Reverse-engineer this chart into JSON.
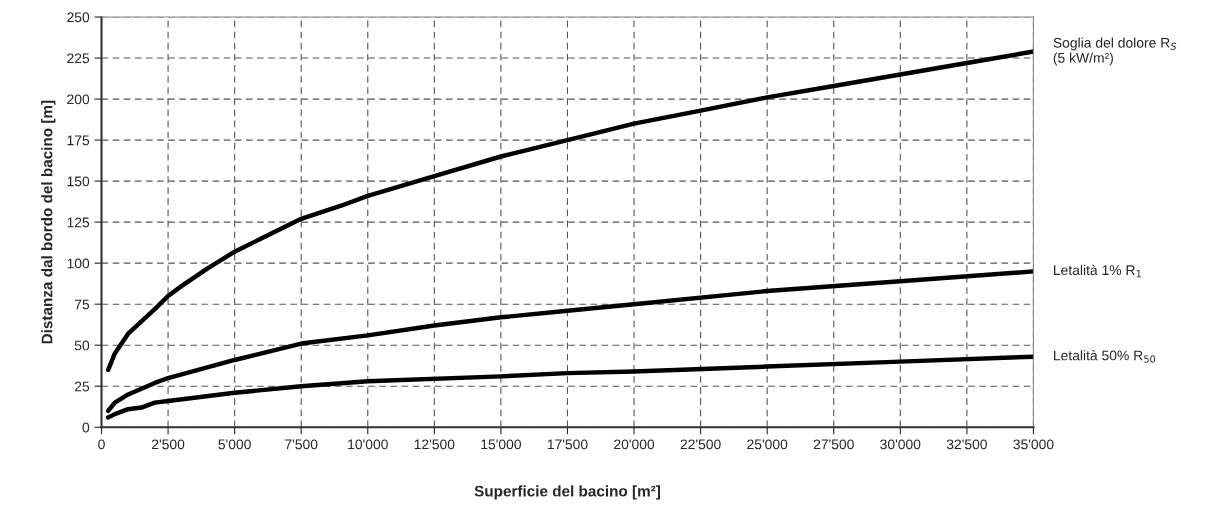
{
  "chart_data": {
    "type": "line",
    "xlabel": "Superficie del bacino [m²]",
    "ylabel": "Distanza dal bordo del bacino [m]",
    "xlim": [
      0,
      35000
    ],
    "ylim": [
      0,
      250
    ],
    "xticks": [
      0,
      {
        "value": 2500,
        "label": "2'500"
      },
      {
        "value": 5000,
        "label": "5'000"
      },
      {
        "value": 7500,
        "label": "7'500"
      },
      {
        "value": 10000,
        "label": "10'000"
      },
      {
        "value": 12500,
        "label": "12'500"
      },
      {
        "value": 15000,
        "label": "15'000"
      },
      {
        "value": 17500,
        "label": "17'500"
      },
      {
        "value": 20000,
        "label": "20'000"
      },
      {
        "value": 22500,
        "label": "22'500"
      },
      {
        "value": 25000,
        "label": "25'000"
      },
      {
        "value": 27500,
        "label": "27'500"
      },
      {
        "value": 30000,
        "label": "30'000"
      },
      {
        "value": 32500,
        "label": "32'500"
      },
      {
        "value": 35000,
        "label": "35'000"
      }
    ],
    "yticks": [
      0,
      25,
      50,
      75,
      100,
      125,
      150,
      175,
      200,
      225,
      250
    ],
    "grid": true,
    "line_style": "solid",
    "marker": "none",
    "series": [
      {
        "name": "Soglia del dolore R$_{S}$\n(5 kW/m²)",
        "color": "#000000",
        "x": [
          250,
          500,
          1000,
          2000,
          2500,
          3000,
          4000,
          5000,
          6000,
          7500,
          9000,
          10000,
          12500,
          15000,
          17500,
          20000,
          22500,
          25000,
          27500,
          30000,
          32500,
          35000
        ],
        "values": [
          35,
          45,
          57,
          72,
          80,
          86,
          97,
          107,
          115,
          127,
          135,
          141,
          153,
          165,
          175,
          185,
          193,
          201,
          208,
          215,
          222,
          229
        ]
      },
      {
        "name": "Letalità 1% R$_{1}$",
        "color": "#000000",
        "x": [
          250,
          500,
          1000,
          2000,
          2500,
          5000,
          7500,
          10000,
          12500,
          15000,
          17500,
          20000,
          25000,
          30000,
          35000
        ],
        "values": [
          10,
          15,
          20,
          27,
          30,
          41,
          51,
          56,
          62,
          67,
          71,
          75,
          83,
          89,
          95
        ]
      },
      {
        "name": "Letalità 50% R$_{50}$",
        "color": "#000000",
        "x": [
          250,
          500,
          1000,
          1500,
          2000,
          2500,
          5000,
          7500,
          10000,
          15000,
          17500,
          20000,
          25000,
          30000,
          35000
        ],
        "values": [
          6,
          8,
          11,
          12,
          15,
          16,
          21,
          25,
          28,
          31,
          33,
          34,
          37,
          40,
          43
        ]
      }
    ]
  }
}
